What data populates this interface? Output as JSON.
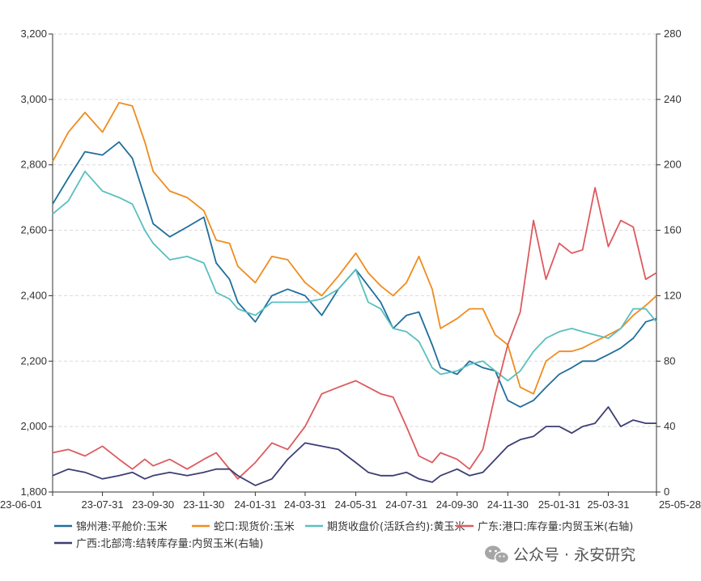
{
  "chart_data": {
    "type": "line",
    "x_ticks": [
      "23-06-01",
      "23-07-31",
      "23-09-30",
      "23-11-30",
      "24-01-31",
      "24-03-31",
      "24-05-31",
      "24-07-31",
      "24-09-30",
      "24-11-30",
      "25-01-31",
      "25-03-31",
      "25-05-28"
    ],
    "y_left": {
      "min": 1800,
      "max": 3200,
      "ticks": [
        "1,800",
        "2,000",
        "2,200",
        "2,400",
        "2,600",
        "2,800",
        "3,000",
        "3,200"
      ]
    },
    "y_right": {
      "min": 0,
      "max": 280,
      "ticks": [
        "0",
        "40",
        "80",
        "120",
        "160",
        "200",
        "240",
        "280"
      ]
    },
    "grid": true,
    "legend_position": "bottom",
    "series": [
      {
        "name": "锦州港:平舱价:玉米",
        "axis": "left",
        "color": "#1f6e9c",
        "x": [
          "23-06-01",
          "23-06-20",
          "23-07-10",
          "23-07-31",
          "23-08-20",
          "23-09-05",
          "23-09-20",
          "23-09-30",
          "23-10-20",
          "23-11-10",
          "23-11-30",
          "23-12-15",
          "23-12-31",
          "24-01-10",
          "24-01-31",
          "24-02-20",
          "24-03-10",
          "24-03-31",
          "24-04-20",
          "24-05-10",
          "24-05-31",
          "24-06-15",
          "24-06-30",
          "24-07-15",
          "24-07-31",
          "24-08-15",
          "24-08-31",
          "24-09-10",
          "24-09-30",
          "24-10-15",
          "24-10-31",
          "24-11-15",
          "24-11-30",
          "24-12-15",
          "24-12-31",
          "25-01-15",
          "25-01-31",
          "25-02-15",
          "25-02-28",
          "25-03-15",
          "25-03-31",
          "25-04-15",
          "25-04-30",
          "25-05-15",
          "25-05-28"
        ],
        "y": [
          2680,
          2760,
          2840,
          2830,
          2870,
          2820,
          2700,
          2620,
          2580,
          2610,
          2640,
          2500,
          2450,
          2380,
          2320,
          2400,
          2420,
          2400,
          2340,
          2420,
          2480,
          2430,
          2380,
          2300,
          2340,
          2350,
          2250,
          2180,
          2160,
          2200,
          2180,
          2170,
          2080,
          2060,
          2080,
          2120,
          2160,
          2180,
          2200,
          2200,
          2220,
          2240,
          2270,
          2320,
          2330
        ]
      },
      {
        "name": "蛇口:现货价:玉米",
        "axis": "left",
        "color": "#f08c1e",
        "x": [
          "23-06-01",
          "23-06-20",
          "23-07-10",
          "23-07-31",
          "23-08-20",
          "23-09-05",
          "23-09-20",
          "23-09-30",
          "23-10-20",
          "23-11-10",
          "23-11-30",
          "23-12-15",
          "23-12-31",
          "24-01-10",
          "24-01-31",
          "24-02-20",
          "24-03-10",
          "24-03-31",
          "24-04-20",
          "24-05-10",
          "24-05-31",
          "24-06-15",
          "24-06-30",
          "24-07-15",
          "24-07-31",
          "24-08-15",
          "24-08-31",
          "24-09-10",
          "24-09-30",
          "24-10-15",
          "24-10-31",
          "24-11-15",
          "24-11-30",
          "24-12-15",
          "24-12-31",
          "25-01-15",
          "25-01-31",
          "25-02-15",
          "25-02-28",
          "25-03-15",
          "25-03-31",
          "25-04-15",
          "25-04-30",
          "25-05-15",
          "25-05-28"
        ],
        "y": [
          2810,
          2900,
          2960,
          2900,
          2990,
          2980,
          2870,
          2780,
          2720,
          2700,
          2660,
          2570,
          2560,
          2490,
          2440,
          2520,
          2510,
          2440,
          2400,
          2460,
          2530,
          2470,
          2430,
          2400,
          2440,
          2520,
          2420,
          2300,
          2330,
          2360,
          2360,
          2280,
          2250,
          2120,
          2100,
          2200,
          2230,
          2230,
          2240,
          2260,
          2280,
          2300,
          2340,
          2370,
          2400
        ]
      },
      {
        "name": "期货收盘价(活跃合约):黄玉米",
        "axis": "left",
        "color": "#5bbfc0",
        "x": [
          "23-06-01",
          "23-06-20",
          "23-07-10",
          "23-07-31",
          "23-08-20",
          "23-09-05",
          "23-09-20",
          "23-09-30",
          "23-10-20",
          "23-11-10",
          "23-11-30",
          "23-12-15",
          "23-12-31",
          "24-01-10",
          "24-01-31",
          "24-02-20",
          "24-03-10",
          "24-03-31",
          "24-04-20",
          "24-05-10",
          "24-05-31",
          "24-06-15",
          "24-06-30",
          "24-07-15",
          "24-07-31",
          "24-08-15",
          "24-08-31",
          "24-09-10",
          "24-09-30",
          "24-10-15",
          "24-10-31",
          "24-11-15",
          "24-11-30",
          "24-12-15",
          "24-12-31",
          "25-01-15",
          "25-01-31",
          "25-02-15",
          "25-02-28",
          "25-03-15",
          "25-03-31",
          "25-04-15",
          "25-04-30",
          "25-05-15",
          "25-05-28"
        ],
        "y": [
          2650,
          2690,
          2780,
          2720,
          2700,
          2680,
          2600,
          2560,
          2510,
          2520,
          2500,
          2410,
          2390,
          2360,
          2340,
          2380,
          2380,
          2380,
          2390,
          2420,
          2480,
          2380,
          2360,
          2300,
          2290,
          2260,
          2180,
          2160,
          2170,
          2190,
          2200,
          2170,
          2140,
          2170,
          2230,
          2270,
          2290,
          2300,
          2290,
          2280,
          2270,
          2300,
          2360,
          2360,
          2320
        ]
      },
      {
        "name": "广东:港口:库存量:内贸玉米(右轴)",
        "axis": "right",
        "color": "#dd5a5e",
        "x": [
          "23-06-01",
          "23-06-20",
          "23-07-10",
          "23-07-31",
          "23-08-20",
          "23-09-05",
          "23-09-20",
          "23-09-30",
          "23-10-20",
          "23-11-10",
          "23-11-30",
          "23-12-15",
          "23-12-31",
          "24-01-10",
          "24-01-31",
          "24-02-20",
          "24-03-10",
          "24-03-31",
          "24-04-20",
          "24-05-10",
          "24-05-31",
          "24-06-15",
          "24-06-30",
          "24-07-15",
          "24-07-31",
          "24-08-15",
          "24-08-31",
          "24-09-10",
          "24-09-30",
          "24-10-15",
          "24-10-31",
          "24-11-15",
          "24-11-30",
          "24-12-15",
          "24-12-31",
          "25-01-15",
          "25-01-31",
          "25-02-15",
          "25-02-28",
          "25-03-15",
          "25-03-31",
          "25-04-15",
          "25-04-30",
          "25-05-15",
          "25-05-28"
        ],
        "y": [
          24,
          26,
          22,
          28,
          20,
          14,
          20,
          16,
          20,
          14,
          20,
          24,
          14,
          8,
          18,
          30,
          26,
          40,
          60,
          64,
          68,
          64,
          60,
          58,
          40,
          22,
          18,
          24,
          20,
          14,
          26,
          60,
          90,
          110,
          166,
          130,
          152,
          146,
          148,
          186,
          150,
          166,
          162,
          130,
          134
        ]
      },
      {
        "name": "广西:北部湾:结转库存量:内贸玉米(右轴)",
        "axis": "right",
        "color": "#3c3f73",
        "x": [
          "23-06-01",
          "23-06-20",
          "23-07-10",
          "23-07-31",
          "23-08-20",
          "23-09-05",
          "23-09-20",
          "23-09-30",
          "23-10-20",
          "23-11-10",
          "23-11-30",
          "23-12-15",
          "23-12-31",
          "24-01-10",
          "24-01-31",
          "24-02-20",
          "24-03-10",
          "24-03-31",
          "24-04-20",
          "24-05-10",
          "24-05-31",
          "24-06-15",
          "24-06-30",
          "24-07-15",
          "24-07-31",
          "24-08-15",
          "24-08-31",
          "24-09-10",
          "24-09-30",
          "24-10-15",
          "24-10-31",
          "24-11-15",
          "24-11-30",
          "24-12-15",
          "24-12-31",
          "25-01-15",
          "25-01-31",
          "25-02-15",
          "25-02-28",
          "25-03-15",
          "25-03-31",
          "25-04-15",
          "25-04-30",
          "25-05-15",
          "25-05-28"
        ],
        "y": [
          10,
          14,
          12,
          8,
          10,
          12,
          8,
          10,
          12,
          10,
          12,
          14,
          14,
          10,
          4,
          8,
          20,
          30,
          28,
          26,
          18,
          12,
          10,
          10,
          12,
          8,
          6,
          10,
          14,
          10,
          12,
          20,
          28,
          32,
          34,
          40,
          40,
          36,
          40,
          42,
          52,
          40,
          44,
          42,
          42
        ]
      }
    ]
  },
  "watermark": "公众号 · 永安研究"
}
